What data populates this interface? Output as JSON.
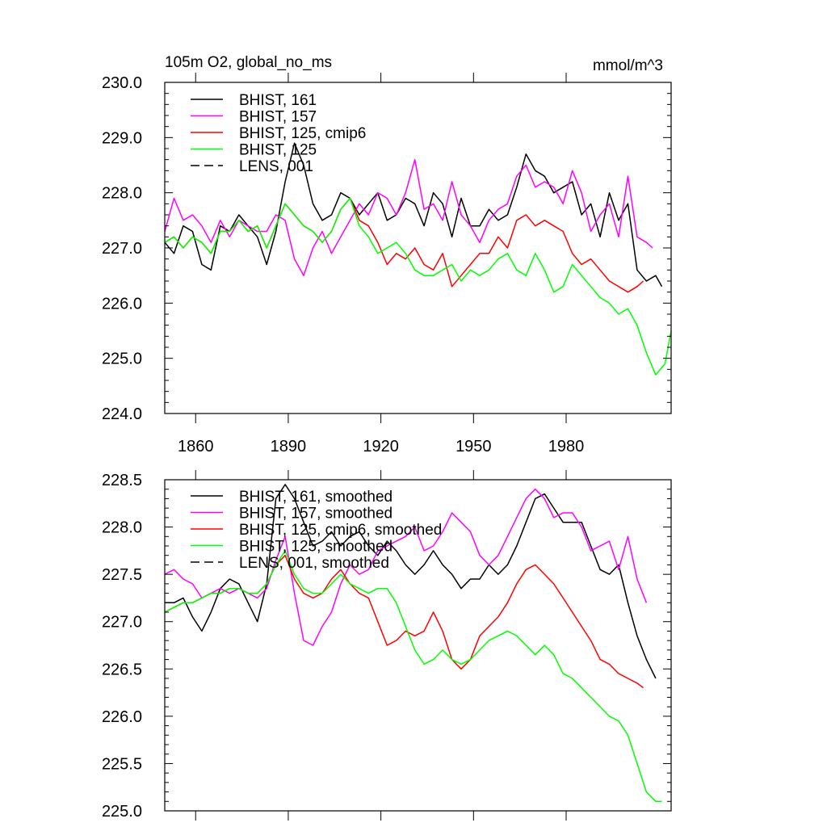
{
  "chart_data": [
    {
      "type": "line",
      "title_left": "105m O2, global_no_ms",
      "title_right": "mmol/m^3",
      "xlim": [
        1850,
        2014
      ],
      "ylim": [
        224.0,
        230.0
      ],
      "x_ticks": [
        1860,
        1890,
        1920,
        1950,
        1980
      ],
      "x_tick_labels": [
        "1860",
        "1890",
        "1920",
        "1950",
        "1980"
      ],
      "y_ticks": [
        224.0,
        225.0,
        226.0,
        227.0,
        228.0,
        229.0,
        230.0
      ],
      "y_tick_labels": [
        "224.0",
        "225.0",
        "226.0",
        "227.0",
        "228.0",
        "229.0",
        "230.0"
      ],
      "legend": [
        {
          "label": "BHIST, 161",
          "color": "#000000",
          "dash": "solid"
        },
        {
          "label": "BHIST, 157",
          "color": "#ff00ff",
          "dash": "solid"
        },
        {
          "label": "BHIST, 125, cmip6",
          "color": "#ff0000",
          "dash": "solid"
        },
        {
          "label": "BHIST, 125",
          "color": "#00ff00",
          "dash": "solid"
        },
        {
          "label": "LENS, 001",
          "color": "#000000",
          "dash": "dashed"
        }
      ],
      "series": [
        {
          "name": "BHIST, 161",
          "color": "#000000",
          "x": [
            1850,
            1853,
            1856,
            1859,
            1862,
            1865,
            1868,
            1871,
            1874,
            1877,
            1880,
            1883,
            1886,
            1889,
            1892,
            1895,
            1898,
            1901,
            1904,
            1907,
            1910,
            1913,
            1916,
            1919,
            1922,
            1925,
            1928,
            1931,
            1934,
            1937,
            1940,
            1943,
            1946,
            1949,
            1952,
            1955,
            1958,
            1961,
            1964,
            1967,
            1970,
            1973,
            1976,
            1979,
            1982,
            1985,
            1988,
            1991,
            1994,
            1997,
            2000,
            2003,
            2006,
            2009,
            2011
          ],
          "y": [
            227.1,
            226.9,
            227.4,
            227.3,
            226.7,
            226.6,
            227.4,
            227.3,
            227.6,
            227.4,
            227.2,
            226.7,
            227.3,
            228.2,
            228.9,
            228.5,
            227.8,
            227.5,
            227.6,
            228.0,
            227.9,
            227.6,
            227.8,
            228.0,
            227.5,
            227.6,
            227.9,
            227.8,
            227.4,
            228.0,
            227.8,
            227.2,
            227.9,
            227.4,
            227.4,
            227.7,
            227.5,
            227.6,
            228.1,
            228.7,
            228.4,
            228.3,
            228.0,
            228.1,
            228.2,
            227.6,
            227.8,
            227.2,
            228.0,
            227.5,
            227.8,
            226.6,
            226.4,
            226.5,
            226.3
          ]
        },
        {
          "name": "BHIST, 157",
          "color": "#ff00ff",
          "x": [
            1850,
            1853,
            1856,
            1859,
            1862,
            1865,
            1868,
            1871,
            1874,
            1877,
            1880,
            1883,
            1886,
            1889,
            1892,
            1895,
            1898,
            1901,
            1904,
            1907,
            1910,
            1913,
            1916,
            1919,
            1922,
            1925,
            1928,
            1931,
            1934,
            1937,
            1940,
            1943,
            1946,
            1949,
            1952,
            1955,
            1958,
            1961,
            1964,
            1967,
            1970,
            1973,
            1976,
            1979,
            1982,
            1985,
            1988,
            1991,
            1994,
            1997,
            2000,
            2003,
            2006,
            2008
          ],
          "y": [
            227.3,
            227.9,
            227.5,
            227.6,
            227.4,
            227.1,
            227.5,
            227.2,
            227.5,
            227.4,
            227.3,
            227.3,
            227.6,
            227.5,
            226.8,
            226.5,
            227.0,
            227.3,
            226.9,
            227.2,
            227.5,
            227.8,
            227.6,
            228.0,
            227.9,
            227.6,
            228.0,
            228.6,
            227.7,
            227.8,
            227.5,
            228.2,
            227.6,
            227.4,
            227.1,
            227.5,
            227.7,
            227.8,
            228.3,
            228.5,
            228.1,
            228.2,
            228.1,
            227.8,
            228.4,
            228.0,
            227.3,
            227.6,
            227.8,
            227.2,
            228.3,
            227.2,
            227.1,
            227.0
          ]
        },
        {
          "name": "BHIST, 125, cmip6",
          "color": "#ff0000",
          "x": [
            1850,
            1853,
            1856,
            1859,
            1862,
            1865,
            1868,
            1871,
            1874,
            1877,
            1880,
            1883,
            1886,
            1889,
            1892,
            1895,
            1898,
            1901,
            1904,
            1907,
            1910,
            1913,
            1916,
            1919,
            1922,
            1925,
            1928,
            1931,
            1934,
            1937,
            1940,
            1943,
            1946,
            1949,
            1952,
            1955,
            1958,
            1961,
            1964,
            1967,
            1970,
            1973,
            1976,
            1979,
            1982,
            1985,
            1988,
            1991,
            1994,
            1997,
            2000,
            2003,
            2005
          ],
          "y": [
            227.1,
            227.2,
            227.0,
            227.2,
            227.1,
            226.9,
            227.3,
            227.3,
            227.5,
            227.3,
            227.4,
            227.0,
            227.4,
            227.8,
            227.6,
            227.4,
            227.3,
            227.1,
            227.3,
            227.7,
            227.9,
            227.5,
            227.4,
            227.1,
            226.7,
            226.9,
            226.8,
            227.0,
            226.7,
            226.6,
            226.9,
            226.3,
            226.5,
            226.7,
            226.9,
            226.9,
            227.2,
            227.0,
            227.5,
            227.6,
            227.4,
            227.5,
            227.4,
            227.3,
            226.9,
            226.7,
            226.8,
            226.6,
            226.4,
            226.3,
            226.2,
            226.3,
            226.4
          ]
        },
        {
          "name": "BHIST, 125",
          "color": "#00ff00",
          "x": [
            1850,
            1853,
            1856,
            1859,
            1862,
            1865,
            1868,
            1871,
            1874,
            1877,
            1880,
            1883,
            1886,
            1889,
            1892,
            1895,
            1898,
            1901,
            1904,
            1907,
            1910,
            1913,
            1916,
            1919,
            1922,
            1925,
            1928,
            1931,
            1934,
            1937,
            1940,
            1943,
            1946,
            1949,
            1952,
            1955,
            1958,
            1961,
            1964,
            1967,
            1970,
            1973,
            1976,
            1979,
            1982,
            1985,
            1988,
            1991,
            1994,
            1997,
            2000,
            2003,
            2006,
            2009,
            2012,
            2014
          ],
          "y": [
            227.1,
            227.2,
            227.0,
            227.2,
            227.1,
            226.9,
            227.3,
            227.3,
            227.5,
            227.3,
            227.4,
            227.0,
            227.4,
            227.8,
            227.6,
            227.4,
            227.3,
            227.1,
            227.3,
            227.7,
            227.9,
            227.4,
            227.2,
            226.9,
            227.0,
            227.1,
            226.9,
            226.6,
            226.5,
            226.5,
            226.6,
            226.7,
            226.4,
            226.6,
            226.5,
            226.6,
            226.8,
            226.9,
            226.6,
            226.5,
            226.9,
            226.6,
            226.2,
            226.3,
            226.7,
            226.5,
            226.3,
            226.1,
            226.0,
            225.8,
            225.9,
            225.6,
            225.1,
            224.7,
            224.9,
            225.5
          ]
        }
      ]
    },
    {
      "type": "line",
      "xlim": [
        1850,
        2014
      ],
      "ylim": [
        225.0,
        228.5
      ],
      "x_ticks": [
        1860,
        1890,
        1920,
        1950,
        1980
      ],
      "y_ticks": [
        225.0,
        225.5,
        226.0,
        226.5,
        227.0,
        227.5,
        228.0,
        228.5
      ],
      "y_tick_labels": [
        "225.0",
        "225.5",
        "226.0",
        "226.5",
        "227.0",
        "227.5",
        "228.0",
        "228.5"
      ],
      "legend": [
        {
          "label": "BHIST, 161, smoothed",
          "color": "#000000",
          "dash": "solid"
        },
        {
          "label": "BHIST, 157, smoothed",
          "color": "#ff00ff",
          "dash": "solid"
        },
        {
          "label": "BHIST, 125, cmip6, smoothed",
          "color": "#ff0000",
          "dash": "solid"
        },
        {
          "label": "BHIST, 125, smoothed",
          "color": "#00ff00",
          "dash": "solid"
        },
        {
          "label": "LENS, 001, smoothed",
          "color": "#000000",
          "dash": "dashed"
        }
      ],
      "series": [
        {
          "name": "BHIST, 161, smoothed",
          "color": "#000000",
          "x": [
            1850,
            1853,
            1856,
            1859,
            1862,
            1865,
            1868,
            1871,
            1874,
            1877,
            1880,
            1883,
            1886,
            1889,
            1892,
            1895,
            1898,
            1901,
            1904,
            1907,
            1910,
            1913,
            1916,
            1919,
            1922,
            1925,
            1928,
            1931,
            1934,
            1937,
            1940,
            1943,
            1946,
            1949,
            1952,
            1955,
            1958,
            1961,
            1964,
            1967,
            1970,
            1973,
            1976,
            1979,
            1982,
            1985,
            1988,
            1991,
            1994,
            1997,
            2000,
            2003,
            2006,
            2009
          ],
          "y": [
            227.2,
            227.2,
            227.25,
            227.05,
            226.9,
            227.1,
            227.35,
            227.45,
            227.4,
            227.2,
            227.0,
            227.4,
            228.3,
            228.45,
            228.3,
            228.05,
            227.8,
            227.85,
            227.95,
            227.8,
            227.9,
            227.95,
            227.8,
            227.7,
            227.85,
            227.75,
            227.6,
            227.5,
            227.6,
            227.75,
            227.6,
            227.5,
            227.35,
            227.45,
            227.45,
            227.6,
            227.5,
            227.6,
            227.8,
            228.05,
            228.3,
            228.35,
            228.2,
            228.05,
            228.05,
            228.05,
            227.8,
            227.55,
            227.5,
            227.6,
            227.2,
            226.85,
            226.6,
            226.4
          ]
        },
        {
          "name": "BHIST, 157, smoothed",
          "color": "#ff00ff",
          "x": [
            1850,
            1853,
            1856,
            1859,
            1862,
            1865,
            1868,
            1871,
            1874,
            1877,
            1880,
            1883,
            1886,
            1889,
            1892,
            1895,
            1898,
            1901,
            1904,
            1907,
            1910,
            1913,
            1916,
            1919,
            1922,
            1925,
            1928,
            1931,
            1934,
            1937,
            1940,
            1943,
            1946,
            1949,
            1952,
            1955,
            1958,
            1961,
            1964,
            1967,
            1970,
            1973,
            1976,
            1979,
            1982,
            1985,
            1988,
            1991,
            1994,
            1997,
            2000,
            2003,
            2006
          ],
          "y": [
            227.5,
            227.55,
            227.45,
            227.4,
            227.25,
            227.3,
            227.35,
            227.3,
            227.35,
            227.3,
            227.25,
            227.35,
            227.65,
            227.9,
            227.3,
            226.8,
            226.75,
            226.95,
            227.1,
            227.4,
            227.6,
            227.5,
            227.55,
            227.75,
            227.8,
            227.85,
            227.9,
            228.0,
            227.75,
            227.8,
            227.95,
            228.15,
            228.05,
            227.95,
            227.7,
            227.6,
            227.7,
            227.9,
            228.1,
            228.3,
            228.4,
            228.3,
            228.1,
            228.15,
            228.15,
            228.0,
            227.75,
            227.8,
            227.85,
            227.55,
            227.9,
            227.45,
            227.2
          ]
        },
        {
          "name": "BHIST, 125, cmip6, smoothed",
          "color": "#ff0000",
          "x": [
            1850,
            1853,
            1856,
            1859,
            1862,
            1865,
            1868,
            1871,
            1874,
            1877,
            1880,
            1883,
            1886,
            1889,
            1892,
            1895,
            1898,
            1901,
            1904,
            1907,
            1910,
            1913,
            1916,
            1919,
            1922,
            1925,
            1928,
            1931,
            1934,
            1937,
            1940,
            1943,
            1946,
            1949,
            1952,
            1955,
            1958,
            1961,
            1964,
            1967,
            1970,
            1973,
            1976,
            1979,
            1982,
            1985,
            1988,
            1991,
            1994,
            1997,
            2000,
            2003,
            2005
          ],
          "y": [
            227.1,
            227.15,
            227.2,
            227.2,
            227.25,
            227.3,
            227.3,
            227.35,
            227.35,
            227.3,
            227.3,
            227.4,
            227.6,
            227.7,
            227.45,
            227.3,
            227.25,
            227.3,
            227.45,
            227.55,
            227.4,
            227.3,
            227.25,
            227.0,
            226.75,
            226.8,
            226.9,
            226.85,
            226.9,
            227.1,
            226.9,
            226.6,
            226.5,
            226.6,
            226.85,
            226.95,
            227.05,
            227.2,
            227.4,
            227.55,
            227.6,
            227.5,
            227.4,
            227.25,
            227.1,
            226.95,
            226.8,
            226.6,
            226.55,
            226.45,
            226.4,
            226.35,
            226.3
          ]
        },
        {
          "name": "BHIST, 125, smoothed",
          "color": "#00ff00",
          "x": [
            1850,
            1853,
            1856,
            1859,
            1862,
            1865,
            1868,
            1871,
            1874,
            1877,
            1880,
            1883,
            1886,
            1889,
            1892,
            1895,
            1898,
            1901,
            1904,
            1907,
            1910,
            1913,
            1916,
            1919,
            1922,
            1925,
            1928,
            1931,
            1934,
            1937,
            1940,
            1943,
            1946,
            1949,
            1952,
            1955,
            1958,
            1961,
            1964,
            1967,
            1970,
            1973,
            1976,
            1979,
            1982,
            1985,
            1988,
            1991,
            1994,
            1997,
            2000,
            2003,
            2006,
            2009,
            2011
          ],
          "y": [
            227.1,
            227.15,
            227.2,
            227.2,
            227.25,
            227.3,
            227.3,
            227.35,
            227.35,
            227.3,
            227.3,
            227.4,
            227.6,
            227.75,
            227.5,
            227.35,
            227.3,
            227.3,
            227.4,
            227.5,
            227.4,
            227.35,
            227.3,
            227.35,
            227.35,
            227.2,
            226.95,
            226.7,
            226.55,
            226.6,
            226.7,
            226.6,
            226.55,
            226.6,
            226.7,
            226.8,
            226.85,
            226.9,
            226.85,
            226.75,
            226.65,
            226.75,
            226.65,
            226.45,
            226.4,
            226.3,
            226.2,
            226.1,
            226.0,
            225.95,
            225.8,
            225.5,
            225.2,
            225.1,
            225.1
          ]
        }
      ]
    }
  ]
}
